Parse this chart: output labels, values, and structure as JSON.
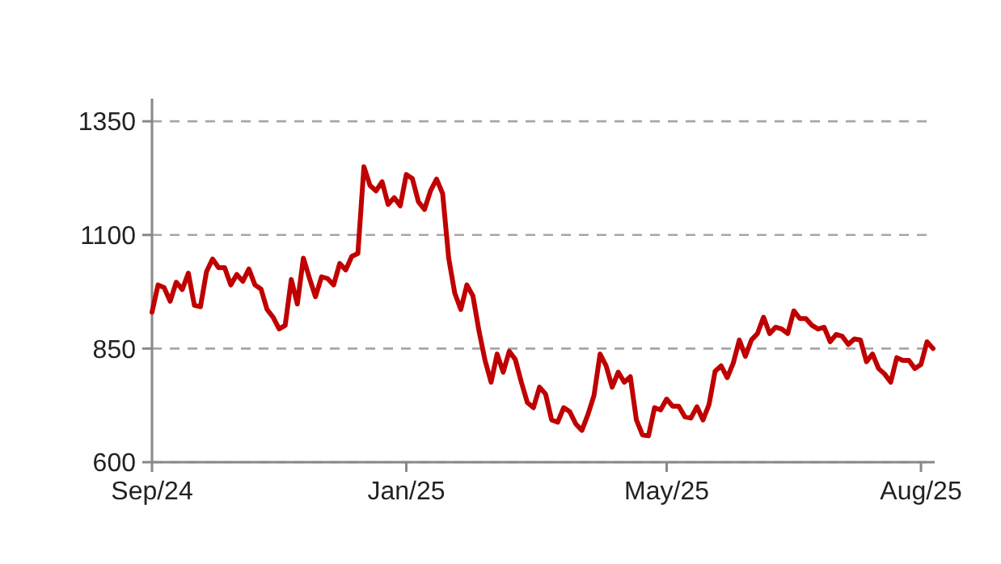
{
  "chart_data": {
    "type": "line",
    "categories": [
      "Sep/24",
      null,
      null,
      null,
      null,
      null,
      null,
      null,
      null,
      null,
      null,
      null,
      null,
      null,
      null,
      null,
      null,
      null,
      null,
      null,
      null,
      null,
      null,
      null,
      null,
      null,
      null,
      null,
      null,
      null,
      null,
      null,
      null,
      null,
      null,
      null,
      null,
      null,
      null,
      null,
      null,
      null,
      "Jan/25",
      null,
      null,
      null,
      null,
      null,
      null,
      null,
      null,
      null,
      null,
      null,
      null,
      null,
      null,
      null,
      null,
      null,
      null,
      null,
      null,
      null,
      null,
      null,
      null,
      null,
      null,
      null,
      null,
      null,
      null,
      null,
      null,
      null,
      null,
      null,
      null,
      null,
      null,
      null,
      null,
      null,
      null,
      "May/25",
      null,
      null,
      null,
      null,
      null,
      null,
      null,
      null,
      null,
      null,
      null,
      null,
      null,
      null,
      null,
      null,
      null,
      null,
      null,
      null,
      null,
      null,
      null,
      null,
      null,
      null,
      null,
      null,
      null,
      null,
      null,
      null,
      null,
      null,
      null,
      null,
      null,
      null,
      null,
      null,
      null,
      "Aug/25",
      null,
      null
    ],
    "series": [
      {
        "color": "#c00000",
        "values": [
          930,
          990,
          984,
          954,
          996,
          980,
          1016,
          945,
          942,
          1019,
          1047,
          1028,
          1028,
          990,
          1013,
          998,
          1025,
          990,
          981,
          936,
          919,
          893,
          901,
          1002,
          948,
          1049,
          1005,
          964,
          1008,
          1004,
          990,
          1037,
          1023,
          1053,
          1059,
          1250,
          1209,
          1197,
          1217,
          1167,
          1182,
          1164,
          1233,
          1224,
          1173,
          1156,
          1197,
          1223,
          1191,
          1049,
          972,
          936,
          990,
          966,
          889,
          824,
          776,
          838,
          798,
          844,
          826,
          776,
          731,
          720,
          765,
          750,
          693,
          688,
          720,
          711,
          684,
          670,
          705,
          747,
          838,
          812,
          765,
          798,
          776,
          788,
          693,
          660,
          658,
          720,
          715,
          739,
          723,
          723,
          700,
          697,
          722,
          693,
          727,
          800,
          812,
          786,
          818,
          869,
          833,
          869,
          883,
          919,
          883,
          897,
          893,
          883,
          933,
          916,
          916,
          901,
          893,
          897,
          865,
          881,
          877,
          859,
          871,
          869,
          821,
          838,
          806,
          794,
          776,
          830,
          824,
          824,
          806,
          815,
          865,
          850
        ]
      }
    ],
    "ylim": [
      600,
      1400
    ],
    "yticks": [
      600,
      850,
      1100,
      1350
    ],
    "grid": "y",
    "marker": "none",
    "line_style": "solid"
  }
}
